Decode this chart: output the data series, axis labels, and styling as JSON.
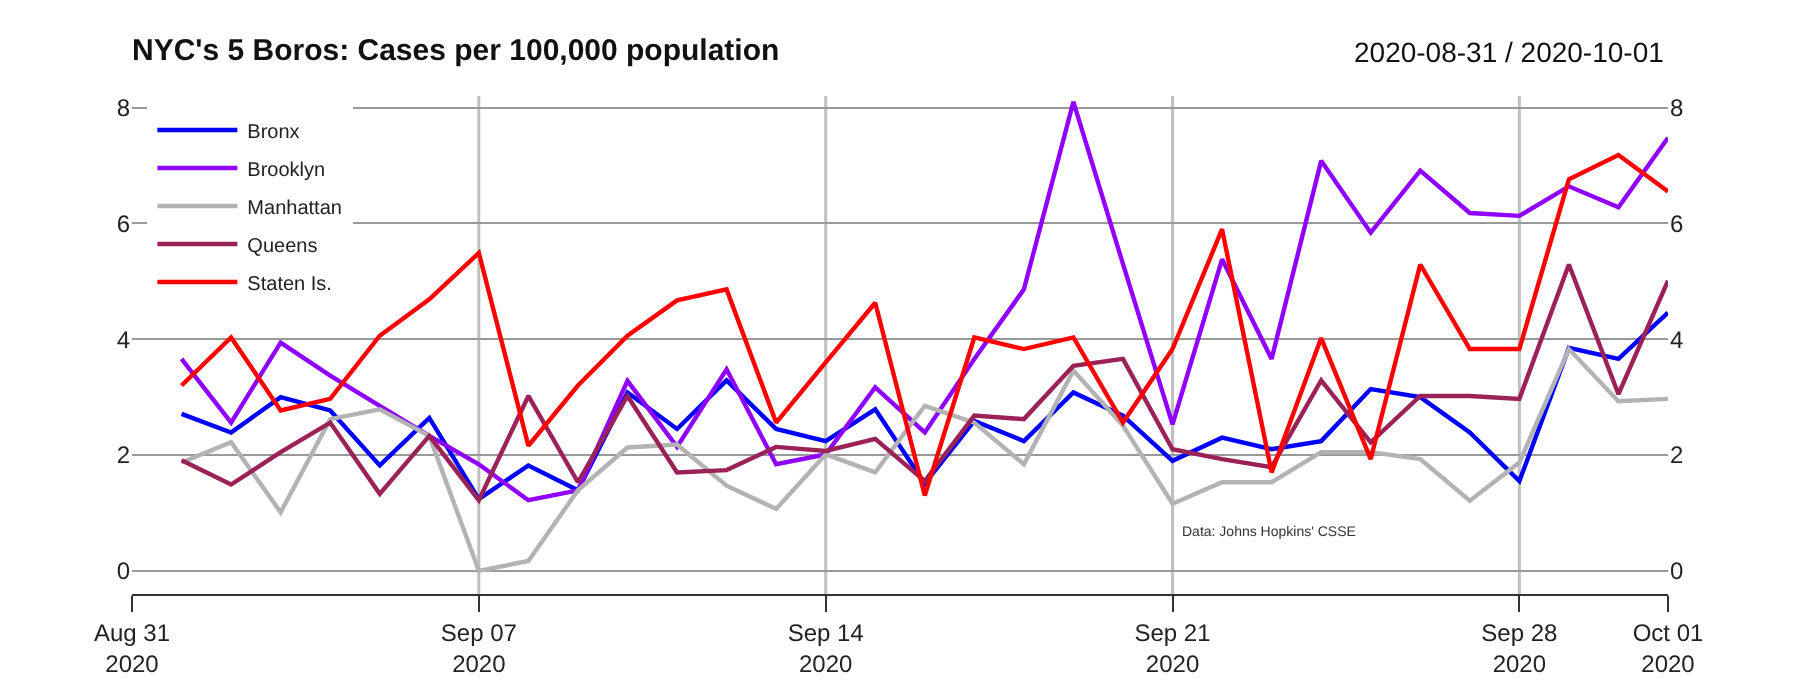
{
  "chart_data": {
    "type": "line",
    "title": "NYC's 5 Boros: Cases per 100,000 population",
    "subtitle": "2020-08-31 / 2020-10-01",
    "x": [
      "2020-09-01",
      "2020-09-02",
      "2020-09-03",
      "2020-09-04",
      "2020-09-05",
      "2020-09-06",
      "2020-09-07",
      "2020-09-08",
      "2020-09-09",
      "2020-09-10",
      "2020-09-11",
      "2020-09-12",
      "2020-09-13",
      "2020-09-14",
      "2020-09-15",
      "2020-09-16",
      "2020-09-17",
      "2020-09-18",
      "2020-09-19",
      "2020-09-20",
      "2020-09-21",
      "2020-09-22",
      "2020-09-23",
      "2020-09-24",
      "2020-09-25",
      "2020-09-26",
      "2020-09-27",
      "2020-09-28",
      "2020-09-29",
      "2020-09-30",
      "2020-10-01"
    ],
    "series": [
      {
        "name": "Bronx",
        "color": "#0000ff",
        "values": [
          2.71,
          2.39,
          3.0,
          2.77,
          1.82,
          2.64,
          1.24,
          1.82,
          1.39,
          3.08,
          2.45,
          3.29,
          2.45,
          2.24,
          2.79,
          1.51,
          2.59,
          2.24,
          3.08,
          2.68,
          1.9,
          2.3,
          2.1,
          2.24,
          3.14,
          3.0,
          2.39,
          1.55,
          3.85,
          3.66,
          4.46
        ]
      },
      {
        "name": "Brooklyn",
        "color": "#8f00ff",
        "values": [
          3.66,
          2.56,
          3.94,
          3.37,
          2.85,
          2.33,
          1.84,
          1.22,
          1.39,
          3.28,
          2.14,
          3.48,
          1.84,
          2.01,
          3.17,
          2.39,
          3.66,
          4.86,
          8.1,
          5.3,
          2.53,
          5.38,
          3.66,
          7.08,
          5.84,
          6.91,
          6.18,
          6.13,
          6.64,
          6.28,
          7.48
        ]
      },
      {
        "name": "Manhattan",
        "color": "#b3b3b3",
        "values": [
          1.87,
          2.22,
          1.01,
          2.62,
          2.79,
          2.33,
          0.0,
          0.17,
          1.39,
          2.13,
          2.18,
          1.47,
          1.07,
          2.01,
          1.7,
          2.85,
          2.56,
          1.84,
          3.46,
          2.51,
          1.16,
          1.53,
          1.53,
          2.05,
          2.05,
          1.93,
          1.21,
          1.87,
          3.83,
          2.93,
          2.97
        ]
      },
      {
        "name": "Queens",
        "color": "#9b2257",
        "values": [
          1.91,
          1.49,
          2.05,
          2.56,
          1.33,
          2.33,
          1.22,
          3.02,
          1.53,
          3.02,
          1.7,
          1.74,
          2.14,
          2.07,
          2.28,
          1.55,
          2.68,
          2.62,
          3.54,
          3.66,
          2.1,
          1.93,
          1.79,
          3.29,
          2.22,
          3.02,
          3.02,
          2.97,
          5.29,
          3.05,
          5.01
        ]
      },
      {
        "name": "Staten Is.",
        "color": "#ff0000",
        "values": [
          3.2,
          4.03,
          2.77,
          2.97,
          4.06,
          4.69,
          5.49,
          2.16,
          3.2,
          4.06,
          4.67,
          4.86,
          2.56,
          3.6,
          4.63,
          1.3,
          4.03,
          3.83,
          4.03,
          2.56,
          3.83,
          5.9,
          1.7,
          4.02,
          1.93,
          5.29,
          3.83,
          3.83,
          6.76,
          7.18,
          6.55
        ]
      }
    ],
    "xlim": [
      "2020-08-31",
      "2020-10-01"
    ],
    "xticks": [
      {
        "value": "2020-08-31",
        "label": "Aug 31\n2020"
      },
      {
        "value": "2020-09-07",
        "label": "Sep 07\n2020"
      },
      {
        "value": "2020-09-14",
        "label": "Sep 14\n2020"
      },
      {
        "value": "2020-09-21",
        "label": "Sep 21\n2020"
      },
      {
        "value": "2020-09-28",
        "label": "Sep 28\n2020"
      },
      {
        "value": "2020-10-01",
        "label": "Oct 01\n2020"
      }
    ],
    "ylim": [
      -0.4,
      8.2
    ],
    "yticks": [
      0,
      2,
      4,
      6,
      8
    ],
    "y2lim": [
      -0.4,
      8.2
    ],
    "y2ticks": [
      0,
      2,
      4,
      6,
      8
    ],
    "ref_lines": [
      {
        "axis": "x",
        "value": "2020-09-07",
        "color": "#c0c0c0"
      },
      {
        "axis": "x",
        "value": "2020-09-14",
        "color": "#c0c0c0"
      },
      {
        "axis": "x",
        "value": "2020-09-21",
        "color": "#c0c0c0"
      },
      {
        "axis": "x",
        "value": "2020-09-28",
        "color": "#c0c0c0"
      }
    ],
    "annotations": [
      "Data: Johns Hopkins' CSSE"
    ],
    "grid": "y",
    "legend": "top left",
    "marker": "none",
    "line_style": "solid"
  }
}
